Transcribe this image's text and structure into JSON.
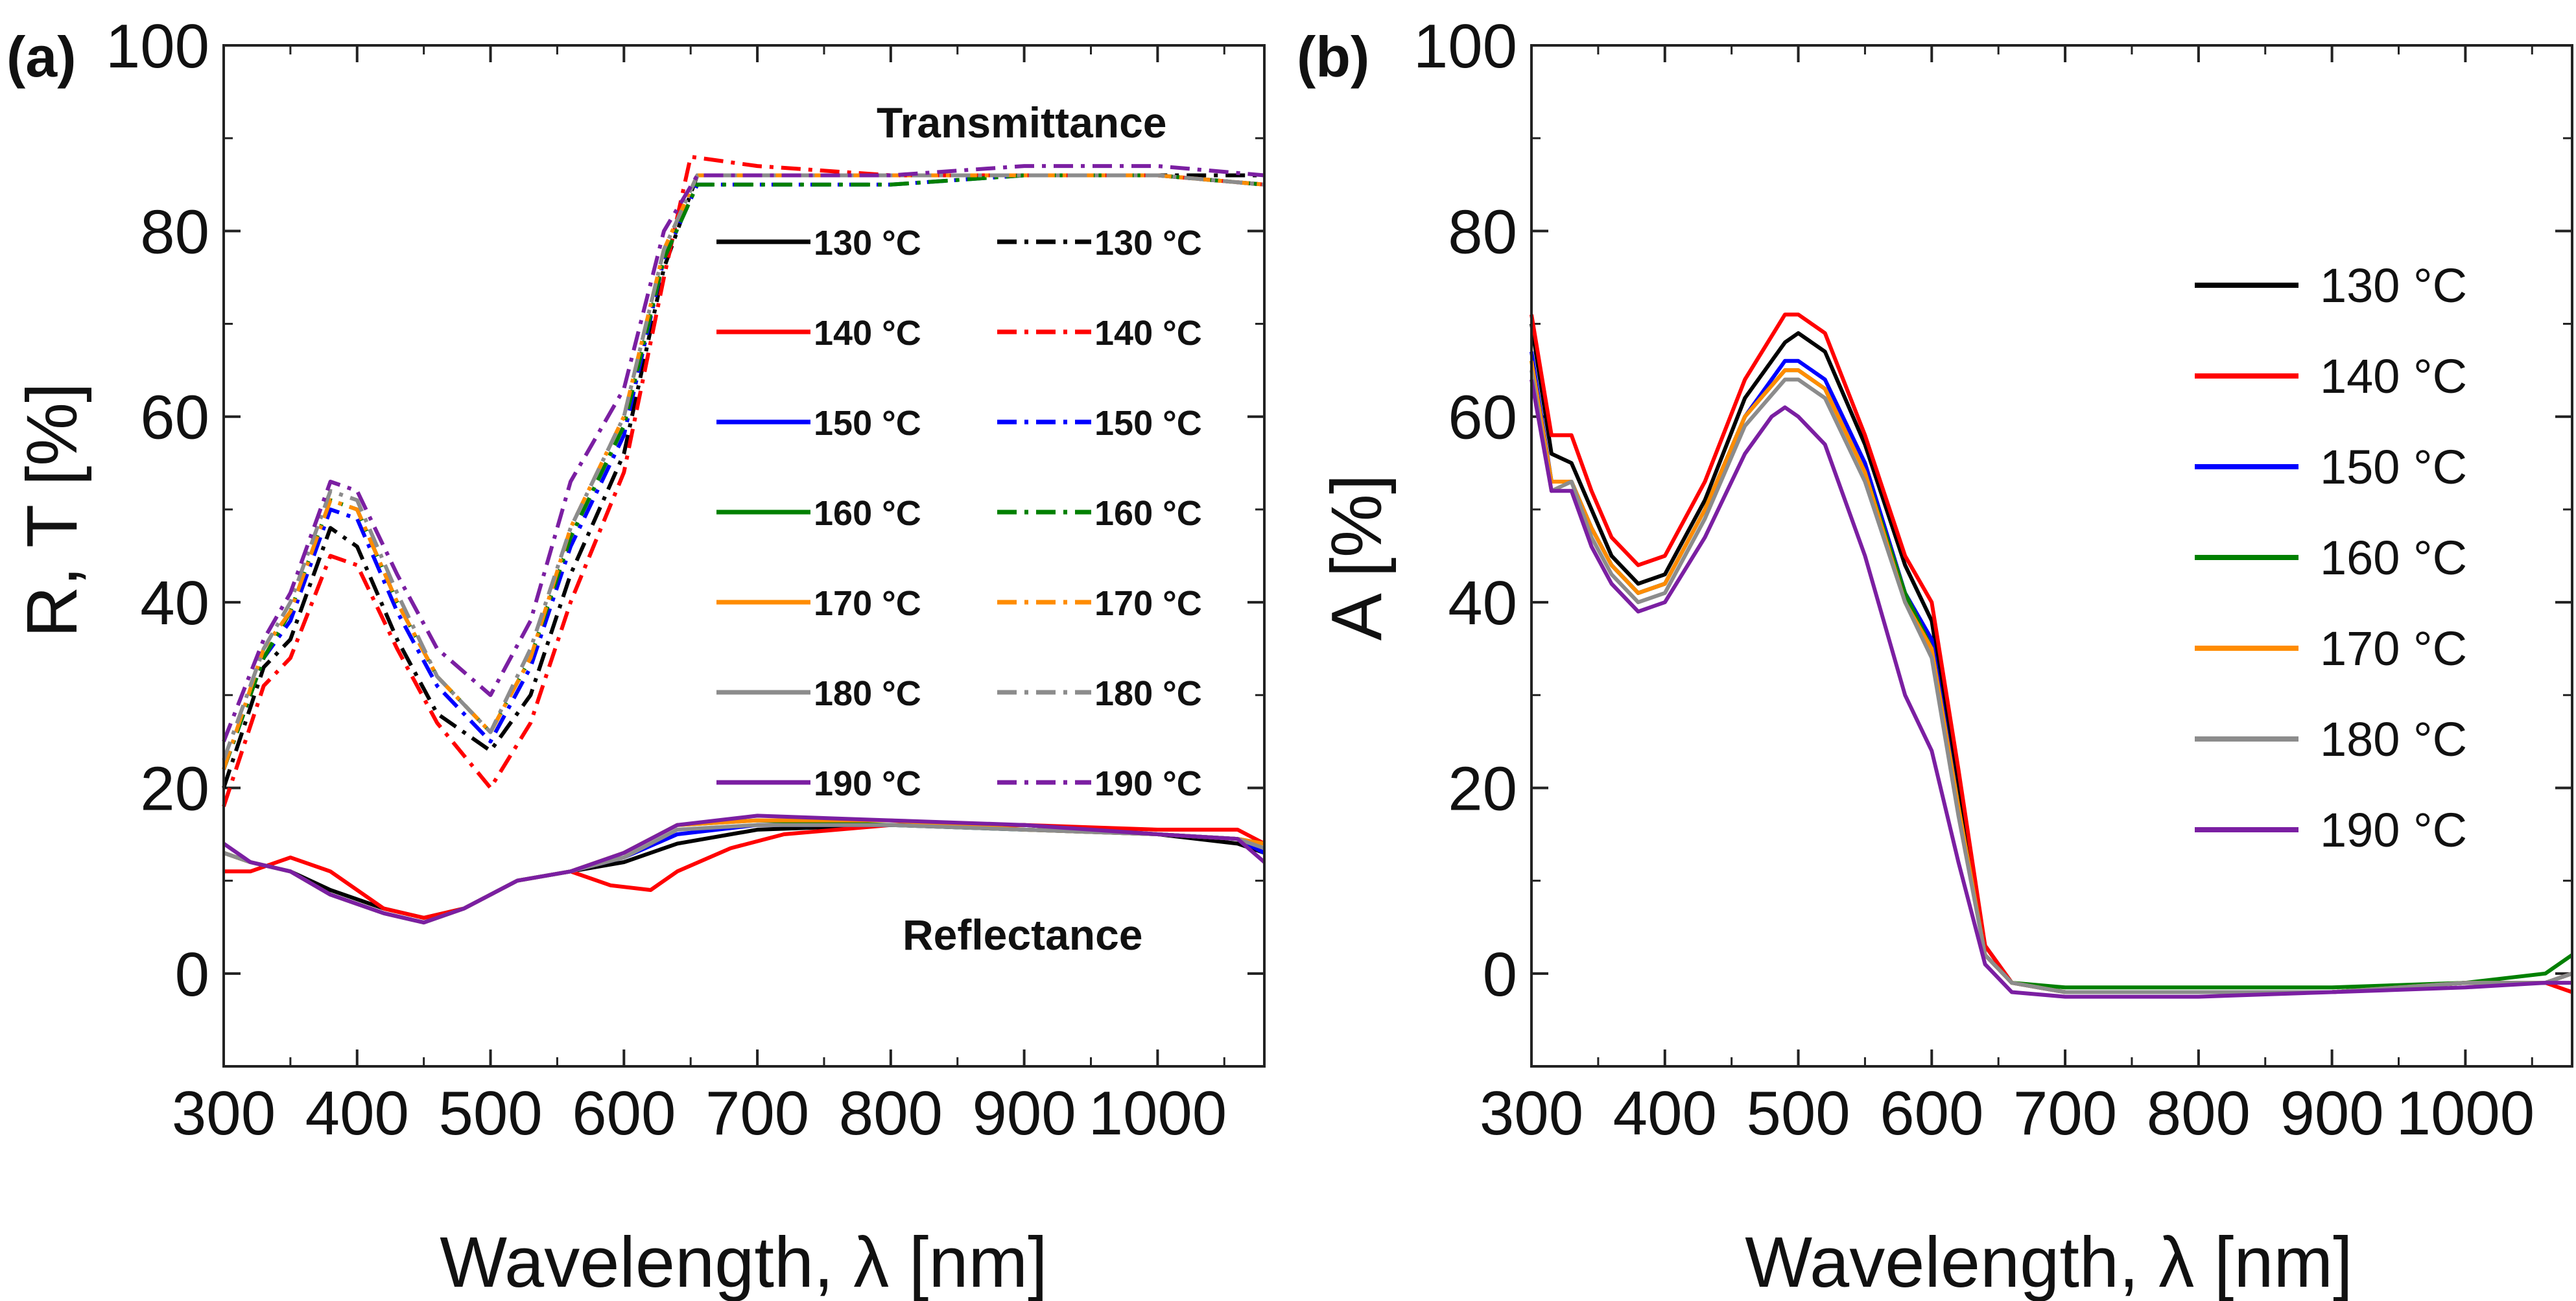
{
  "chart_data": [
    {
      "panel": "(a)",
      "type": "line",
      "xlabel": "Wavelength, λ [nm]",
      "ylabel": "R, T [%]",
      "xlim": [
        300,
        1080
      ],
      "ylim": [
        -10,
        100
      ],
      "xticks": [
        300,
        400,
        500,
        600,
        700,
        800,
        900,
        1000
      ],
      "yticks": [
        0,
        20,
        40,
        60,
        80,
        100
      ],
      "annotations": {
        "transmittance": "Transmittance",
        "reflectance": "Reflectance"
      },
      "legend_position": "top-right",
      "legend_columns": [
        {
          "style": "solid",
          "labels": [
            "130 °C",
            "140 °C",
            "150 °C",
            "160 °C",
            "170 °C",
            "180 °C",
            "190 °C"
          ]
        },
        {
          "style": "dash-dot",
          "labels": [
            "130 °C",
            "140 °C",
            "150 °C",
            "160 °C",
            "170 °C",
            "180 °C",
            "190 °C"
          ]
        }
      ],
      "transmittance_series": [
        {
          "name": "130 °C",
          "color": "#000000",
          "x": [
            300,
            330,
            350,
            380,
            400,
            430,
            460,
            500,
            530,
            560,
            600,
            630,
            655,
            700,
            800,
            900,
            1000,
            1080
          ],
          "y": [
            20,
            33,
            36,
            48,
            46,
            36,
            28,
            24,
            30,
            43,
            56,
            76,
            86,
            86,
            86,
            86,
            86,
            86
          ]
        },
        {
          "name": "140 °C",
          "color": "#ff0000",
          "x": [
            300,
            330,
            350,
            380,
            400,
            430,
            460,
            500,
            530,
            560,
            600,
            630,
            650,
            700,
            800,
            900,
            1000,
            1080
          ],
          "y": [
            18,
            31,
            34,
            45,
            44,
            35,
            27,
            20,
            27,
            40,
            54,
            75,
            88,
            87,
            86,
            86,
            86,
            85
          ]
        },
        {
          "name": "150 °C",
          "color": "#0000ff",
          "x": [
            300,
            330,
            350,
            380,
            400,
            430,
            460,
            500,
            530,
            560,
            600,
            630,
            655,
            700,
            800,
            900,
            1000,
            1080
          ],
          "y": [
            22,
            34,
            38,
            50,
            49,
            39,
            31,
            25,
            33,
            46,
            58,
            77,
            85,
            85,
            85,
            86,
            86,
            85
          ]
        },
        {
          "name": "160 °C",
          "color": "#008000",
          "x": [
            300,
            330,
            350,
            380,
            400,
            430,
            460,
            500,
            530,
            560,
            600,
            630,
            655,
            700,
            800,
            900,
            1000,
            1080
          ],
          "y": [
            22,
            34,
            39,
            51,
            50,
            40,
            32,
            26,
            34,
            47,
            59,
            77,
            85,
            85,
            85,
            86,
            86,
            85
          ]
        },
        {
          "name": "170 °C",
          "color": "#ff8c00",
          "x": [
            300,
            330,
            350,
            380,
            400,
            430,
            460,
            500,
            530,
            560,
            600,
            630,
            655,
            700,
            800,
            900,
            1000,
            1080
          ],
          "y": [
            22,
            35,
            39,
            51,
            50,
            40,
            32,
            26,
            34,
            48,
            60,
            78,
            86,
            86,
            86,
            86,
            86,
            85
          ]
        },
        {
          "name": "180 °C",
          "color": "#8c8c8c",
          "x": [
            300,
            330,
            350,
            380,
            400,
            430,
            460,
            500,
            530,
            560,
            600,
            630,
            655,
            700,
            800,
            900,
            1000,
            1080
          ],
          "y": [
            23,
            35,
            40,
            52,
            51,
            41,
            32,
            26,
            35,
            48,
            60,
            78,
            86,
            86,
            86,
            86,
            86,
            85
          ]
        },
        {
          "name": "190 °C",
          "color": "#7b1fa2",
          "x": [
            300,
            330,
            350,
            380,
            400,
            430,
            460,
            500,
            530,
            560,
            600,
            630,
            655,
            700,
            800,
            900,
            1000,
            1080
          ],
          "y": [
            25,
            36,
            41,
            53,
            52,
            43,
            35,
            30,
            38,
            53,
            63,
            80,
            86,
            86,
            86,
            87,
            87,
            86
          ]
        }
      ],
      "reflectance_series": [
        {
          "name": "130 °C",
          "color": "#000000",
          "x": [
            300,
            320,
            350,
            380,
            420,
            450,
            480,
            520,
            560,
            600,
            640,
            700,
            800,
            900,
            1000,
            1060,
            1080
          ],
          "y": [
            13,
            12,
            11,
            9,
            7,
            6,
            7,
            10,
            11,
            12,
            14,
            15.5,
            16,
            16,
            15,
            14,
            13
          ]
        },
        {
          "name": "140 °C",
          "color": "#ff0000",
          "x": [
            300,
            320,
            350,
            380,
            420,
            450,
            480,
            520,
            560,
            590,
            620,
            640,
            680,
            720,
            800,
            900,
            1000,
            1060,
            1080
          ],
          "y": [
            11,
            11,
            12.5,
            11,
            7,
            6,
            7,
            10,
            11,
            9.5,
            9,
            11,
            13.5,
            15,
            16,
            16,
            15.5,
            15.5,
            14
          ]
        },
        {
          "name": "150 °C",
          "color": "#0000ff",
          "x": [
            300,
            320,
            350,
            380,
            420,
            450,
            480,
            520,
            560,
            600,
            640,
            700,
            800,
            900,
            1000,
            1060,
            1080
          ],
          "y": [
            13,
            12,
            11,
            8.5,
            6.5,
            5.5,
            7,
            10,
            11,
            12.5,
            15,
            16,
            16,
            15.5,
            15,
            14.5,
            13
          ]
        },
        {
          "name": "160 °C",
          "color": "#008000",
          "x": [
            300,
            320,
            350,
            380,
            420,
            450,
            480,
            520,
            560,
            600,
            640,
            700,
            800,
            900,
            1000,
            1060,
            1080
          ],
          "y": [
            13,
            12,
            11,
            8.5,
            6.5,
            5.5,
            7,
            10,
            11,
            13,
            16,
            16.5,
            16,
            15.5,
            15,
            14.5,
            14
          ]
        },
        {
          "name": "170 °C",
          "color": "#ff8c00",
          "x": [
            300,
            320,
            350,
            380,
            420,
            450,
            480,
            520,
            560,
            600,
            640,
            700,
            800,
            900,
            1000,
            1060,
            1080
          ],
          "y": [
            13,
            12,
            11,
            8.5,
            6.5,
            5.5,
            7,
            10,
            11,
            13,
            16,
            16.5,
            16.5,
            15.5,
            15,
            14.5,
            14
          ]
        },
        {
          "name": "180 °C",
          "color": "#8c8c8c",
          "x": [
            300,
            320,
            350,
            380,
            420,
            450,
            480,
            520,
            560,
            600,
            640,
            700,
            800,
            900,
            1000,
            1060,
            1080
          ],
          "y": [
            13,
            12,
            11,
            8.5,
            6.5,
            5.5,
            7,
            10,
            11,
            12.5,
            15.5,
            16,
            16,
            15.5,
            15,
            14.5,
            13.5
          ]
        },
        {
          "name": "190 °C",
          "color": "#7b1fa2",
          "x": [
            300,
            320,
            350,
            380,
            420,
            450,
            480,
            520,
            560,
            600,
            640,
            700,
            800,
            900,
            1000,
            1060,
            1080
          ],
          "y": [
            14,
            12,
            11,
            8.5,
            6.5,
            5.5,
            7,
            10,
            11,
            13,
            16,
            17,
            16.5,
            16,
            15,
            14.5,
            12
          ]
        }
      ]
    },
    {
      "panel": "(b)",
      "type": "line",
      "xlabel": "Wavelength, λ [nm]",
      "ylabel": "A [%]",
      "xlim": [
        300,
        1080
      ],
      "ylim": [
        -10,
        100
      ],
      "xticks": [
        300,
        400,
        500,
        600,
        700,
        800,
        900,
        1000
      ],
      "yticks": [
        0,
        20,
        40,
        60,
        80,
        100
      ],
      "legend_position": "top-right",
      "series": [
        {
          "name": "130 °C",
          "color": "#000000",
          "x": [
            300,
            315,
            330,
            345,
            360,
            380,
            400,
            430,
            460,
            490,
            500,
            520,
            550,
            580,
            600,
            620,
            640,
            660,
            700,
            800,
            900,
            1000,
            1060,
            1080
          ],
          "y": [
            70,
            56,
            55,
            50,
            45,
            42,
            43,
            51,
            62,
            68,
            69,
            67,
            57,
            44,
            38,
            20,
            3,
            -1,
            -2,
            -2,
            -2,
            -1,
            -1,
            0
          ]
        },
        {
          "name": "140 °C",
          "color": "#ff0000",
          "x": [
            300,
            315,
            330,
            345,
            360,
            380,
            400,
            430,
            460,
            490,
            500,
            520,
            550,
            580,
            600,
            620,
            640,
            660,
            700,
            800,
            900,
            1000,
            1060,
            1080
          ],
          "y": [
            71,
            58,
            58,
            52,
            47,
            44,
            45,
            53,
            64,
            71,
            71,
            69,
            58,
            45,
            40,
            22,
            3,
            -1,
            -2,
            -2,
            -2,
            -1,
            -1,
            -2
          ]
        },
        {
          "name": "150 °C",
          "color": "#0000ff",
          "x": [
            300,
            315,
            330,
            345,
            360,
            380,
            400,
            430,
            460,
            490,
            500,
            520,
            550,
            580,
            600,
            620,
            640,
            660,
            700,
            800,
            900,
            1000,
            1060,
            1080
          ],
          "y": [
            67,
            53,
            53,
            48,
            44,
            41,
            42,
            50,
            60,
            66,
            66,
            64,
            55,
            41,
            36,
            18,
            2,
            -1,
            -2,
            -2,
            -2,
            -1,
            -1,
            0
          ]
        },
        {
          "name": "160 °C",
          "color": "#008000",
          "x": [
            300,
            315,
            330,
            345,
            360,
            380,
            400,
            430,
            460,
            490,
            500,
            520,
            550,
            580,
            600,
            620,
            640,
            660,
            700,
            800,
            900,
            1000,
            1060,
            1080
          ],
          "y": [
            66,
            53,
            53,
            48,
            44,
            41,
            42,
            50,
            60,
            65,
            65,
            63,
            54,
            41,
            35,
            18,
            2,
            -1,
            -1.5,
            -1.5,
            -1.5,
            -1,
            0,
            2
          ]
        },
        {
          "name": "170 °C",
          "color": "#ff8c00",
          "x": [
            300,
            315,
            330,
            345,
            360,
            380,
            400,
            430,
            460,
            490,
            500,
            520,
            550,
            580,
            600,
            620,
            640,
            660,
            700,
            800,
            900,
            1000,
            1060,
            1080
          ],
          "y": [
            66,
            53,
            53,
            48,
            44,
            41,
            42,
            50,
            60,
            65,
            65,
            63,
            54,
            40,
            35,
            18,
            2,
            -1,
            -2,
            -2,
            -2,
            -1,
            -1,
            0
          ]
        },
        {
          "name": "180 °C",
          "color": "#8c8c8c",
          "x": [
            300,
            315,
            330,
            345,
            360,
            380,
            400,
            430,
            460,
            490,
            500,
            520,
            550,
            580,
            600,
            620,
            640,
            660,
            700,
            800,
            900,
            1000,
            1060,
            1080
          ],
          "y": [
            65,
            52,
            53,
            47,
            43,
            40,
            41,
            49,
            59,
            64,
            64,
            62,
            53,
            40,
            34,
            17,
            2,
            -1,
            -2,
            -2,
            -2,
            -1,
            -1,
            0
          ]
        },
        {
          "name": "190 °C",
          "color": "#7b1fa2",
          "x": [
            300,
            315,
            330,
            345,
            360,
            380,
            400,
            430,
            460,
            480,
            490,
            500,
            520,
            550,
            580,
            600,
            620,
            640,
            660,
            700,
            800,
            900,
            1000,
            1060,
            1080
          ],
          "y": [
            64,
            52,
            52,
            46,
            42,
            39,
            40,
            47,
            56,
            60,
            61,
            60,
            57,
            45,
            30,
            24,
            12,
            1,
            -2,
            -2.5,
            -2.5,
            -2,
            -1.5,
            -1,
            -1
          ]
        }
      ]
    }
  ]
}
